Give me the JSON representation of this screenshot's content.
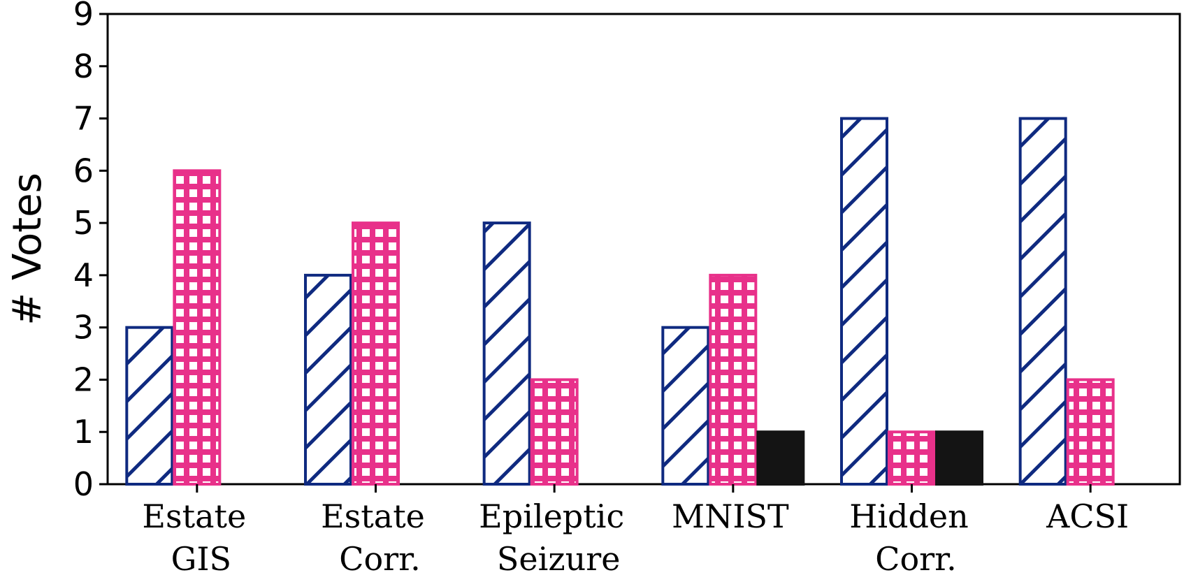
{
  "chart_data": {
    "type": "bar",
    "title": "",
    "xlabel": "",
    "ylabel": "# Votes",
    "ylim": [
      0,
      9
    ],
    "yticks": [
      0,
      1,
      2,
      3,
      4,
      5,
      6,
      7,
      8,
      9
    ],
    "categories": [
      [
        "Estate",
        "GIS"
      ],
      [
        "Estate",
        "Corr."
      ],
      [
        "Epileptic",
        "Seizure"
      ],
      [
        "MNIST"
      ],
      [
        "Hidden",
        "Corr."
      ],
      [
        "ACSI"
      ]
    ],
    "series": [
      {
        "name": "series-1",
        "pattern": "diagonal-hatch",
        "color": "#0f2a80",
        "values": [
          3,
          4,
          5,
          3,
          7,
          7
        ]
      },
      {
        "name": "series-2",
        "pattern": "grid-hatch",
        "color": "#e8318a",
        "values": [
          6,
          5,
          2,
          4,
          1,
          2
        ]
      },
      {
        "name": "series-3",
        "pattern": "solid",
        "color": "#141414",
        "values": [
          0,
          0,
          0,
          1,
          1,
          0
        ]
      }
    ],
    "grid": false,
    "legend": "none"
  }
}
